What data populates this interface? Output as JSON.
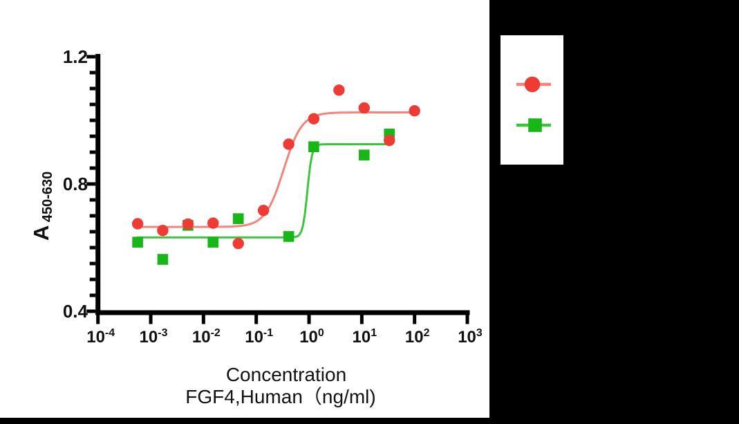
{
  "chart_data": {
    "type": "scatter",
    "title": "",
    "x_scale": "log10",
    "xlim_log": [
      -4,
      3
    ],
    "ylim": [
      0.4,
      1.2
    ],
    "xlabel_line1": "Concentration",
    "xlabel_line2": "FGF4,Human（ng/ml)",
    "ylabel_base": "A",
    "ylabel_subscript": "450-630",
    "x_tick_base": "10",
    "x_tick_exponents": [
      -4,
      -3,
      -2,
      -1,
      0,
      1,
      2,
      3
    ],
    "y_major_ticks": [
      0.4,
      0.8,
      1.2
    ],
    "y_minor_step": 0.05,
    "grid": false,
    "legend_position": "right-outside",
    "axis_color": "#000000",
    "series": [
      {
        "name": "green-square-series",
        "marker": "square",
        "marker_color": "#16b716",
        "line_color": "#3bc53b",
        "x": [
          0.000565,
          0.00169,
          0.00508,
          0.0152,
          0.0457,
          0.412,
          1.23,
          11.1,
          33.3
        ],
        "y": [
          0.617,
          0.563,
          0.67,
          0.617,
          0.691,
          0.635,
          0.917,
          0.891,
          0.957
        ],
        "fit": {
          "bottom": 0.632,
          "top": 0.925,
          "ec50": 0.93,
          "hill": 10,
          "log_start": -3.248,
          "log_end": 1.522
        }
      },
      {
        "name": "red-circle-series",
        "marker": "circle",
        "marker_color": "#ee3b33",
        "line_color": "#f5837b",
        "x": [
          0.000565,
          0.00169,
          0.00508,
          0.0152,
          0.0457,
          0.137,
          0.412,
          1.23,
          3.7,
          11.1,
          33.3,
          100
        ],
        "y": [
          0.675,
          0.654,
          0.674,
          0.677,
          0.613,
          0.717,
          0.925,
          1.005,
          1.095,
          1.039,
          0.937,
          1.03
        ],
        "fit": {
          "bottom": 0.665,
          "top": 1.025,
          "ec50": 0.33,
          "hill": 2.5,
          "log_start": -3.248,
          "log_end": 2.0
        }
      }
    ],
    "legend": {
      "entries": [
        {
          "marker": "circle",
          "marker_color": "#ee3b33",
          "line_color": "#f5837b",
          "label": ""
        },
        {
          "marker": "square",
          "marker_color": "#16b716",
          "line_color": "#3bc53b",
          "label": ""
        }
      ]
    }
  }
}
